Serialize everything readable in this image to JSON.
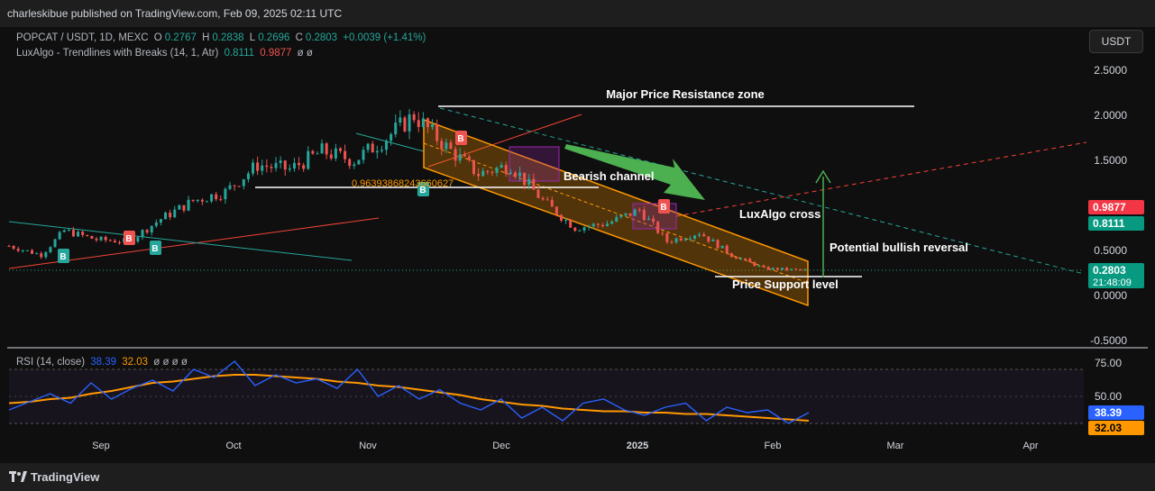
{
  "publisher": "charleskibue published on TradingView.com, Feb 09, 2025 02:11 UTC",
  "symbol": {
    "name": "POPCAT / USDT, 1D, MEXC",
    "o_label": "O",
    "o": "0.2767",
    "h_label": "H",
    "h": "0.2838",
    "l_label": "L",
    "l": "0.2696",
    "c_label": "C",
    "c": "0.2803",
    "change": "+0.0039 (+1.41%)"
  },
  "indicator": {
    "name": "LuxAlgo - Trendlines with Breaks (14, 1, Atr)",
    "v1": "0.8111",
    "v2": "0.9877",
    "extra": "ø  ø"
  },
  "currency_button": "USDT",
  "colors": {
    "up": "#26a69a",
    "down": "#ef5350",
    "rsi": "#2962ff",
    "rsi_ma": "#ff9800",
    "channel": "#ff9800",
    "arrow": "#4caf50"
  },
  "chart_data": {
    "type": "candlestick",
    "title": "POPCAT / USDT, 1D, MEXC",
    "x_ticks": [
      "Sep",
      "Oct",
      "Nov",
      "Dec",
      "2025",
      "Feb",
      "Mar",
      "Apr"
    ],
    "y_ticks": [
      "2.5000",
      "2.0000",
      "1.5000",
      "1.0000",
      "0.5000",
      "0.0000",
      "-0.5000"
    ],
    "ylim": [
      -0.6,
      2.7
    ],
    "price_tags": [
      {
        "value": "0.9877",
        "color": "#f23645"
      },
      {
        "value": "0.8111",
        "color": "#089981"
      },
      {
        "value": "0.2803",
        "color": "#089981",
        "sub": "21:48:09"
      }
    ],
    "series": [
      {
        "name": "price",
        "points": [
          [
            "2024-08-20",
            0.55
          ],
          [
            "2024-08-27",
            0.45
          ],
          [
            "2024-09-01",
            0.72
          ],
          [
            "2024-09-08",
            0.62
          ],
          [
            "2024-09-15",
            0.6
          ],
          [
            "2024-09-22",
            0.85
          ],
          [
            "2024-09-29",
            1.05
          ],
          [
            "2024-10-06",
            1.15
          ],
          [
            "2024-10-13",
            1.45
          ],
          [
            "2024-10-20",
            1.4
          ],
          [
            "2024-10-27",
            1.6
          ],
          [
            "2024-11-03",
            1.5
          ],
          [
            "2024-11-10",
            1.75
          ],
          [
            "2024-11-16",
            2.0
          ],
          [
            "2024-11-23",
            1.65
          ],
          [
            "2024-11-30",
            1.35
          ],
          [
            "2024-12-07",
            1.45
          ],
          [
            "2024-12-14",
            1.05
          ],
          [
            "2024-12-21",
            0.75
          ],
          [
            "2024-12-28",
            0.8
          ],
          [
            "2025-01-04",
            0.95
          ],
          [
            "2025-01-10",
            0.6
          ],
          [
            "2025-01-17",
            0.7
          ],
          [
            "2025-01-24",
            0.45
          ],
          [
            "2025-01-31",
            0.3
          ],
          [
            "2025-02-09",
            0.28
          ]
        ]
      }
    ],
    "annotations": [
      {
        "text": "Major Price Resistance zone",
        "value": 2.1
      },
      {
        "text": "Bearish channel"
      },
      {
        "text": "LuxAlgo cross"
      },
      {
        "text": "Potential bullish reversal"
      },
      {
        "text": "Price Support level",
        "value": 0.22
      },
      {
        "text": "0.96393868243660627"
      }
    ],
    "signals": [
      "B",
      "B",
      "B",
      "B",
      "B",
      "B"
    ]
  },
  "rsi": {
    "label": "RSI (14, close)",
    "value": "38.39",
    "ma_value": "32.03",
    "extra": "ø  ø  ø  ø",
    "y_ticks": [
      "75.00",
      "50.00"
    ],
    "series": [
      {
        "name": "RSI",
        "values": [
          40,
          46,
          52,
          45,
          60,
          48,
          56,
          62,
          54,
          70,
          64,
          76,
          58,
          66,
          60,
          63,
          56,
          70,
          50,
          58,
          48,
          55,
          45,
          40,
          48,
          34,
          42,
          32,
          45,
          48,
          40,
          36,
          42,
          45,
          32,
          42,
          38,
          40,
          30,
          38
        ]
      },
      {
        "name": "RSI-based MA",
        "values": [
          45,
          46,
          48,
          49,
          52,
          54,
          57,
          60,
          61,
          63,
          65,
          66,
          66,
          65,
          64,
          63,
          61,
          60,
          58,
          57,
          55,
          53,
          51,
          48,
          46,
          44,
          43,
          41,
          40,
          39,
          39,
          38,
          38,
          37,
          37,
          36,
          35,
          34,
          33,
          32
        ]
      }
    ]
  },
  "brand": "TradingView"
}
